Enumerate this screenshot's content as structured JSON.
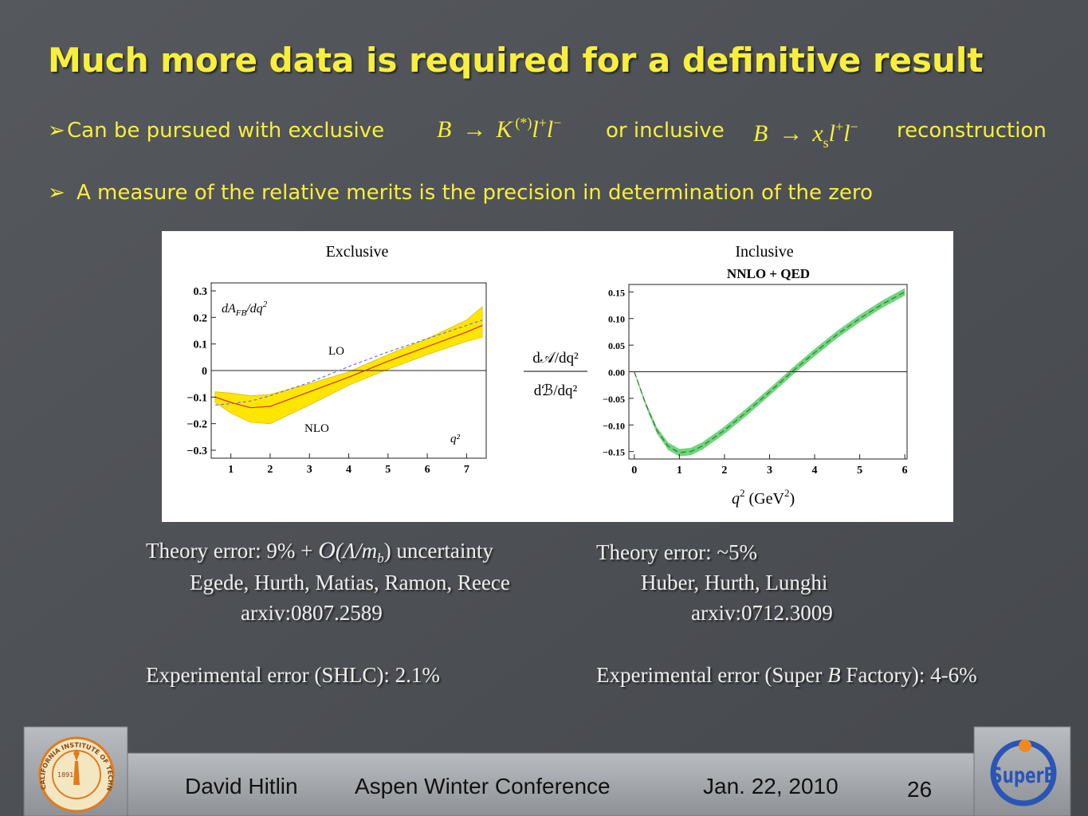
{
  "title": "Much more data is required for a definitive result",
  "bullets": [
    {
      "marker": "➢",
      "parts": [
        "Can be pursued with exclusive",
        "or inclusive",
        "reconstruction"
      ],
      "formula_exclusive": [
        "B",
        "→",
        "K",
        "(*)",
        "l",
        "+",
        "l",
        "−"
      ],
      "formula_inclusive": [
        "B",
        "→",
        "x",
        "s",
        "l",
        "+",
        "l",
        "−"
      ]
    },
    {
      "marker": "➢",
      "text": "A measure of the relative merits is the precision in determination of the zero"
    }
  ],
  "plots": [
    {
      "label": "Exclusive",
      "ylabel": [
        "dA",
        "FB",
        "/dq",
        "2"
      ],
      "annotations": [
        "LO",
        "NLO",
        "q²"
      ],
      "xlim": [
        0.5,
        7.5
      ],
      "ylim": [
        -0.33,
        0.33
      ],
      "xticks": [
        1,
        2,
        3,
        4,
        5,
        6,
        7
      ],
      "yticks": [
        0.3,
        0.2,
        0.1,
        0,
        {
          "value": -0.1,
          "label": "−0.1"
        },
        {
          "value": -0.2,
          "label": "−0.2"
        },
        {
          "value": -0.3,
          "label": "−0.3"
        }
      ],
      "x": [
        0.6,
        1,
        1.5,
        2,
        3,
        4,
        5,
        6,
        7,
        7.4
      ],
      "nlo": [
        -0.1,
        -0.12,
        -0.14,
        -0.135,
        -0.08,
        -0.025,
        0.035,
        0.09,
        0.145,
        0.17
      ],
      "band_upper": [
        -0.08,
        -0.085,
        -0.095,
        -0.09,
        -0.05,
        -0.005,
        0.06,
        0.12,
        0.19,
        0.24
      ],
      "band_lower": [
        -0.12,
        -0.16,
        -0.195,
        -0.2,
        -0.13,
        -0.055,
        0.005,
        0.06,
        0.11,
        0.125
      ],
      "lo": [
        -0.13,
        -0.125,
        -0.115,
        -0.095,
        -0.045,
        0.015,
        0.07,
        0.12,
        0.17,
        0.19
      ],
      "band_color": "#ffe600",
      "line_color": "#e0261b",
      "lo_color": "#6b73e0"
    },
    {
      "label": "Inclusive",
      "title": "NNLO + QED",
      "xlabel": [
        "q",
        "2",
        " (GeV",
        "2",
        ")"
      ],
      "ylabel": [
        "d𝒜/dq²",
        "dℬ/dq²"
      ],
      "xlim": [
        -0.12,
        6.05
      ],
      "ylim": [
        -0.164,
        0.164
      ],
      "xticks": [
        0,
        1,
        2,
        3,
        4,
        5,
        6
      ],
      "yticks": [
        0.15,
        {
          "value": 0.1,
          "label": "0.10"
        },
        0.05,
        {
          "value": 0,
          "label": "0.00"
        },
        {
          "value": -0.05,
          "label": "−0.05"
        },
        {
          "value": -0.1,
          "label": "−0.10"
        },
        {
          "value": -0.15,
          "label": "−0.15"
        }
      ],
      "x": [
        0,
        0.25,
        0.5,
        0.75,
        1,
        1.25,
        1.5,
        2,
        2.5,
        3,
        3.5,
        4,
        4.5,
        5,
        5.5,
        6
      ],
      "center": [
        0,
        -0.06,
        -0.11,
        -0.14,
        -0.152,
        -0.15,
        -0.14,
        -0.11,
        -0.075,
        -0.038,
        0,
        0.036,
        0.07,
        0.1,
        0.127,
        0.15
      ],
      "band_upper": [
        0.002,
        -0.056,
        -0.104,
        -0.133,
        -0.145,
        -0.143,
        -0.133,
        -0.103,
        -0.068,
        -0.031,
        0.007,
        0.043,
        0.077,
        0.107,
        0.134,
        0.157
      ],
      "band_lower": [
        -0.002,
        -0.064,
        -0.116,
        -0.147,
        -0.159,
        -0.157,
        -0.147,
        -0.117,
        -0.082,
        -0.045,
        -0.007,
        0.029,
        0.063,
        0.093,
        0.12,
        0.143
      ],
      "band_color": "#6fd67a",
      "line_color": "#3d7a45"
    }
  ],
  "left": {
    "theory": [
      "Theory error: 9% + ",
      "O",
      "(Λ/m",
      "b",
      ") uncertainty"
    ],
    "authors": "Egede, Hurth, Matias, Ramon, Reece",
    "arxiv": "arxiv:0807.2589",
    "experimental": "Experimental error (SHLC):  2.1%"
  },
  "right": {
    "theory": "Theory error: ~5%",
    "authors": "Huber, Hurth, Lunghi",
    "arxiv": "arxiv:0712.3009",
    "experimental": [
      "Experimental error (Super ",
      "B",
      " Factory):  4-6%"
    ]
  },
  "footer": {
    "author": "David Hitlin",
    "conference": "Aspen Winter Conference",
    "date": "Jan. 22, 2010",
    "page": "26"
  },
  "logos": {
    "caltech": "CALIFORNIA INSTITUTE OF TECHNOLOGY",
    "year": "1891",
    "superb": "SuperB"
  }
}
